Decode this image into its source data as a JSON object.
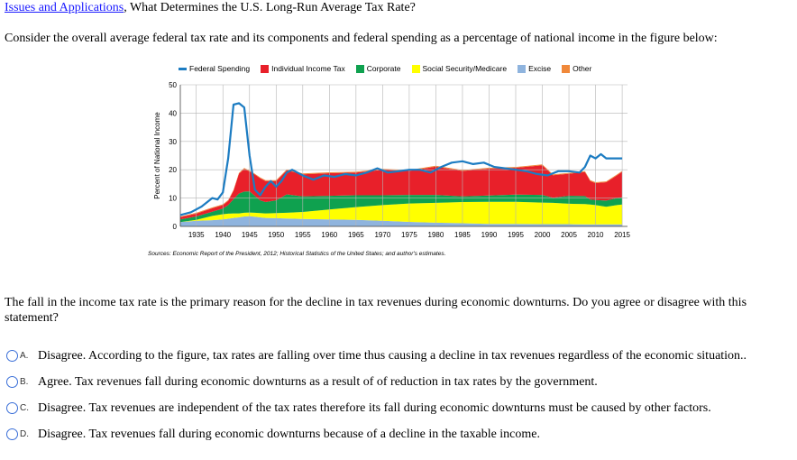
{
  "header": {
    "link": "Issues and Applications",
    "sep": ",",
    "title": "What Determines the U.S. Long-Run Average Tax Rate?"
  },
  "intro": "Consider the overall average federal tax rate and its components and federal spending as a percentage of national income in the figure below:",
  "chart_data": {
    "type": "area",
    "ylabel": "Percent of National Income",
    "xlabel": "",
    "xlim": [
      1932,
      2016
    ],
    "ylim": [
      0,
      50
    ],
    "yticks": [
      0,
      10,
      20,
      30,
      40,
      50
    ],
    "xticks": [
      1935,
      1940,
      1945,
      1950,
      1955,
      1960,
      1965,
      1970,
      1975,
      1980,
      1985,
      1990,
      1995,
      2000,
      2005,
      2010,
      2015
    ],
    "grid": true,
    "legend_position": "top",
    "source": "Sources: Economic Report of the President, 2012; Historical Statistics of the United States; and author's estimates.",
    "x": [
      1932,
      1935,
      1938,
      1940,
      1941,
      1942,
      1943,
      1944,
      1945,
      1946,
      1947,
      1948,
      1950,
      1952,
      1955,
      1960,
      1965,
      1970,
      1975,
      1980,
      1985,
      1990,
      1995,
      2000,
      2002,
      2005,
      2008,
      2009,
      2010,
      2012,
      2014,
      2015
    ],
    "stack_series": [
      {
        "name": "Excise",
        "color": "#8fb4de",
        "values": [
          1.5,
          2.0,
          2.2,
          2.5,
          2.7,
          3.0,
          3.2,
          3.5,
          3.6,
          3.4,
          3.2,
          3.0,
          2.9,
          2.8,
          2.6,
          2.5,
          2.3,
          2.0,
          1.6,
          1.3,
          1.1,
          0.9,
          0.9,
          0.8,
          0.8,
          0.8,
          0.7,
          0.7,
          0.7,
          0.7,
          0.7,
          0.7
        ]
      },
      {
        "name": "Social Security/Medicare",
        "color": "#ffff00",
        "values": [
          0.0,
          0.3,
          1.5,
          1.8,
          1.8,
          1.6,
          1.4,
          1.3,
          1.3,
          1.4,
          1.5,
          1.6,
          1.8,
          2.0,
          2.5,
          3.5,
          4.5,
          5.5,
          6.5,
          7.0,
          7.5,
          7.8,
          7.8,
          7.6,
          7.5,
          7.2,
          7.2,
          7.0,
          6.8,
          6.2,
          6.8,
          7.0
        ]
      },
      {
        "name": "Corporate",
        "color": "#0fa14f",
        "values": [
          1.0,
          1.2,
          1.5,
          2.0,
          3.0,
          5.0,
          7.0,
          7.5,
          7.5,
          6.0,
          4.5,
          4.0,
          4.5,
          6.5,
          5.5,
          4.8,
          4.2,
          3.5,
          3.0,
          2.8,
          2.0,
          2.2,
          2.5,
          2.7,
          1.8,
          2.8,
          2.8,
          1.8,
          1.8,
          2.2,
          2.5,
          2.6
        ]
      },
      {
        "name": "Individual Income Tax",
        "color": "#e8202a",
        "values": [
          0.8,
          1.0,
          1.2,
          1.2,
          1.5,
          3.0,
          7.0,
          8.0,
          7.0,
          7.5,
          7.8,
          7.4,
          6.8,
          8.5,
          7.8,
          8.0,
          8.0,
          9.0,
          8.5,
          10.0,
          9.0,
          9.5,
          9.5,
          10.5,
          8.0,
          7.8,
          8.5,
          6.5,
          6.0,
          6.5,
          8.0,
          9.0
        ]
      },
      {
        "name": "Other",
        "color": "#f0883a",
        "values": [
          0.2,
          0.3,
          0.3,
          0.3,
          0.3,
          0.3,
          0.3,
          0.3,
          0.3,
          0.3,
          0.3,
          0.3,
          0.3,
          0.3,
          0.3,
          0.3,
          0.3,
          0.3,
          0.3,
          0.3,
          0.3,
          0.3,
          0.3,
          0.3,
          0.3,
          0.3,
          0.3,
          0.3,
          0.3,
          0.3,
          0.3,
          0.3
        ]
      }
    ],
    "line_series": {
      "name": "Federal Spending",
      "color": "#1c7cc2",
      "x": [
        1932,
        1934,
        1936,
        1938,
        1939,
        1940,
        1941,
        1942,
        1943,
        1944,
        1945,
        1946,
        1947,
        1948,
        1949,
        1950,
        1951,
        1952,
        1953,
        1954,
        1955,
        1957,
        1959,
        1961,
        1963,
        1965,
        1967,
        1969,
        1971,
        1973,
        1975,
        1977,
        1979,
        1981,
        1983,
        1985,
        1987,
        1989,
        1991,
        1993,
        1995,
        1997,
        1999,
        2001,
        2003,
        2005,
        2007,
        2008,
        2009,
        2010,
        2011,
        2012,
        2013,
        2015
      ],
      "values": [
        4,
        5,
        7,
        10,
        9.5,
        12,
        24,
        43,
        43.5,
        42,
        25,
        13,
        11,
        14,
        16,
        14,
        16,
        19,
        20,
        19,
        18,
        16.5,
        18,
        17.5,
        18.5,
        18,
        19,
        20.5,
        19,
        19.5,
        20,
        20,
        19,
        21,
        22.5,
        23,
        22,
        22.5,
        21,
        20.5,
        20,
        19.5,
        18.5,
        18,
        19.5,
        19.5,
        19,
        21,
        25,
        24,
        25.5,
        24,
        24,
        24
      ]
    }
  },
  "question": "The fall in the income tax rate is the primary reason for the decline in tax revenues during economic downturns. Do you agree or disagree with this statement?",
  "choices": [
    {
      "letter": "A.",
      "text": "Disagree. According to the figure, tax rates are falling over time thus causing a decline in tax revenues regardless of the economic situation.."
    },
    {
      "letter": "B.",
      "text": "Agree. Tax revenues fall during economic downturns as a result of of reduction in tax rates by the government."
    },
    {
      "letter": "C.",
      "text": "Disagree. Tax revenues are independent of the tax rates therefore its fall during economic downturns must be caused by other factors."
    },
    {
      "letter": "D.",
      "text": "Disagree. Tax revenues fall during economic downturns because of a decline in the taxable income."
    }
  ]
}
